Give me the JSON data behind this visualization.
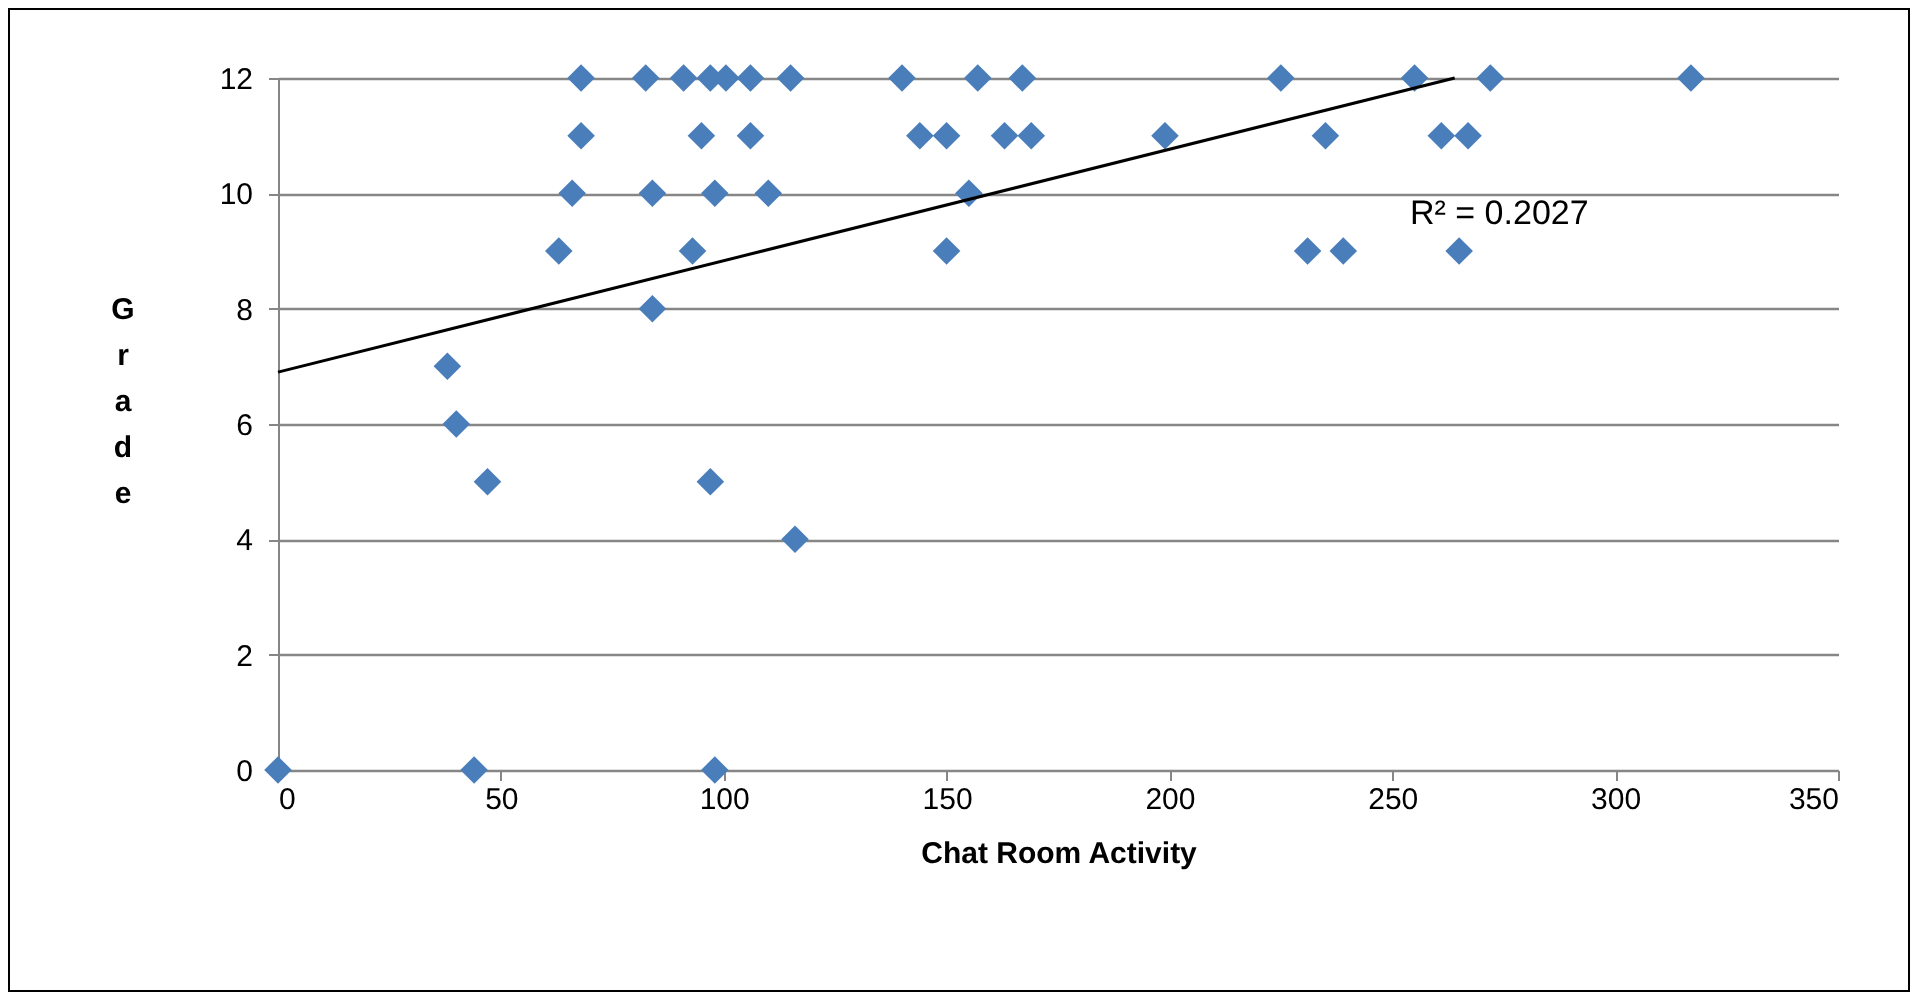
{
  "chart_data": {
    "type": "scatter",
    "xlabel": "Chat Room Activity",
    "ylabel": "Grade",
    "xlim": [
      0,
      350
    ],
    "xticks": [
      0,
      50,
      100,
      150,
      200,
      250,
      300,
      350
    ],
    "ylim": [
      0,
      12
    ],
    "yticks": [
      0,
      2,
      4,
      6,
      8,
      10,
      12
    ],
    "grid": "y",
    "marker": "diamond",
    "series": [
      {
        "color": "#4a7ebb",
        "x": [
          68,
          82.5,
          91,
          97,
          100.5,
          106,
          115,
          140,
          157,
          167,
          225,
          255,
          272,
          317,
          68,
          95,
          106,
          144,
          150,
          163,
          169,
          199,
          235,
          261,
          267,
          66,
          84,
          98,
          110,
          155,
          63,
          93,
          150,
          231,
          239,
          265,
          84,
          38,
          40,
          47,
          97,
          116,
          0,
          44,
          98
        ],
        "values": [
          12,
          12,
          12,
          12,
          12,
          12,
          12,
          12,
          12,
          12,
          12,
          12,
          12,
          12,
          11,
          11,
          11,
          11,
          11,
          11,
          11,
          11,
          11,
          11,
          11,
          10,
          10,
          10,
          10,
          10,
          9,
          9,
          9,
          9,
          9,
          9,
          8,
          7,
          6,
          5,
          5,
          4,
          0,
          0,
          0
        ]
      },
      {
        "type": "line",
        "color": "#000000",
        "marker": "none",
        "x": [
          0,
          264
        ],
        "values": [
          6.9,
          12
        ]
      }
    ],
    "annotations": [
      "R² = 0.2027"
    ]
  }
}
